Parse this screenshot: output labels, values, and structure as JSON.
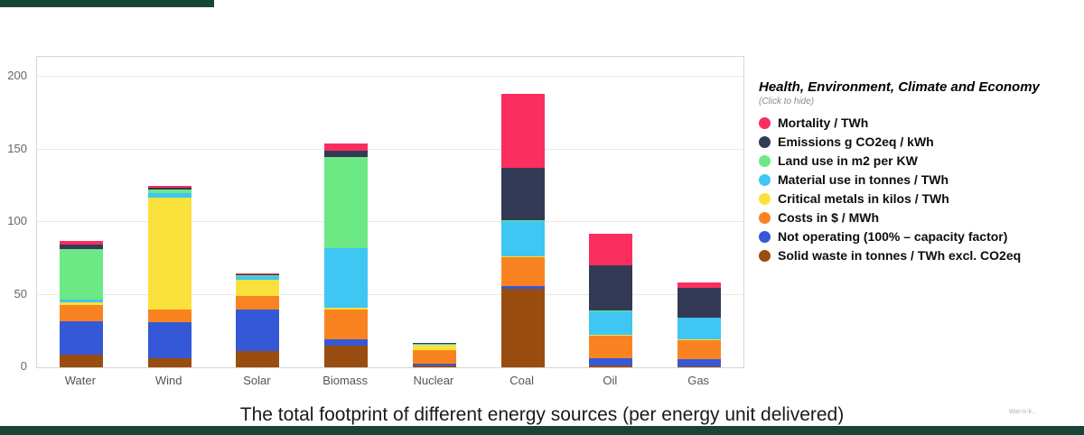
{
  "page": {
    "background": "#ffffff",
    "accent_green": "#164537"
  },
  "footer": {
    "watermark": "Wat-is-k..."
  },
  "chart_data": {
    "type": "bar",
    "stacked": true,
    "title": "The total footprint of different energy sources (per energy unit delivered)",
    "categories": [
      "Water",
      "Wind",
      "Solar",
      "Biomass",
      "Nuclear",
      "Coal",
      "Oil",
      "Gas"
    ],
    "ylim": [
      0,
      200
    ],
    "yticks": [
      0,
      50,
      100,
      150,
      200
    ],
    "grid": true,
    "legend": {
      "position": "right",
      "title": "Health, Environment, Climate and Economy",
      "subtitle": "(Click to hide)"
    },
    "series_order_note": "first series renders at top of each stacked bar",
    "series": [
      {
        "name": "Mortality / TWh",
        "color": "#FA2E5F",
        "values": [
          2.5,
          1,
          0.6,
          5,
          0.3,
          51,
          22,
          4
        ]
      },
      {
        "name": "Emissions g CO2eq / kWh",
        "color": "#343A56",
        "values": [
          3,
          1.2,
          0.8,
          4,
          0.3,
          36,
          31,
          20
        ]
      },
      {
        "name": "Land use in m2 per KW",
        "color": "#6CE885",
        "values": [
          35,
          2.5,
          0.8,
          63,
          0.3,
          0.5,
          0.5,
          0.5
        ]
      },
      {
        "name": "Material use in tonnes / TWh",
        "color": "#3FC6F3",
        "values": [
          2,
          3,
          2.5,
          41,
          0.6,
          24,
          16,
          15
        ]
      },
      {
        "name": "Critical metals in kilos / TWh",
        "color": "#FBE13C",
        "values": [
          1.5,
          77,
          11,
          1,
          3.5,
          0.5,
          0.5,
          0.5
        ]
      },
      {
        "name": "Costs in $ / MWh",
        "color": "#F98320",
        "values": [
          11,
          9,
          9,
          21,
          9.5,
          20,
          16,
          13
        ]
      },
      {
        "name": "Not operating (100% – capacity factor)",
        "color": "#3558D6",
        "values": [
          23,
          25,
          29,
          4,
          1.5,
          2,
          5,
          5
        ]
      },
      {
        "name": "Solid waste in tonnes / TWh excl. CO2eq",
        "color": "#9A4D10",
        "values": [
          9,
          6,
          11,
          15,
          1,
          54,
          1,
          0.5
        ]
      }
    ]
  }
}
